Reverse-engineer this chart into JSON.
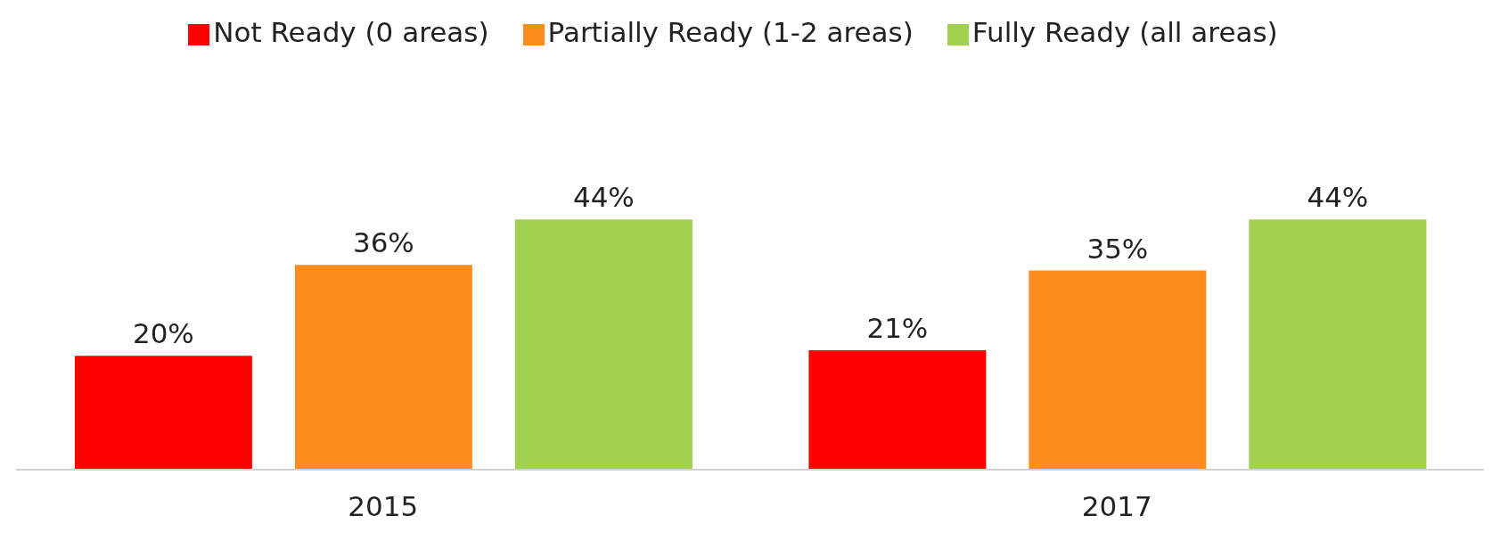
{
  "chart_data": {
    "type": "bar",
    "categories": [
      "2015",
      "2017"
    ],
    "series": [
      {
        "name": "Not Ready (0 areas)",
        "color": "#ff0000",
        "values": [
          20,
          21
        ],
        "value_labels": [
          "20%",
          "21%"
        ]
      },
      {
        "name": "Partially Ready (1-2 areas)",
        "color": "#ff8c1e",
        "values": [
          36,
          35
        ],
        "value_labels": [
          "36%",
          "35%"
        ]
      },
      {
        "name": "Fully Ready (all areas)",
        "color": "#a2d14f",
        "values": [
          44,
          44
        ],
        "value_labels": [
          "44%",
          "44%"
        ]
      }
    ],
    "legend": "top",
    "grid": false
  }
}
